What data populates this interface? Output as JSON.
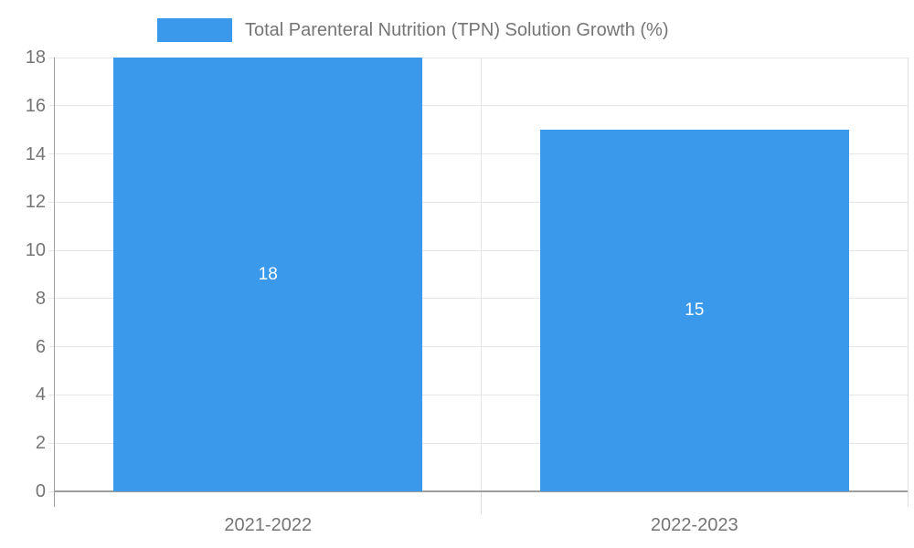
{
  "chart_data": {
    "type": "bar",
    "title": "",
    "legend_label": "Total Parenteral Nutrition (TPN) Solution Growth (%)",
    "legend_position": "top",
    "categories": [
      "2021-2022",
      "2022-2023"
    ],
    "values": [
      18,
      15
    ],
    "bar_labels": [
      "18",
      "15"
    ],
    "ylim": [
      0,
      18
    ],
    "ytick_step": 2,
    "ytick_labels": [
      "0",
      "2",
      "4",
      "6",
      "8",
      "10",
      "12",
      "14",
      "16",
      "18"
    ],
    "grid": true,
    "colors": {
      "bar": "#3B99EC",
      "tick_text": "#757575",
      "legend_text": "#757575",
      "bar_label_text": "#ffffff",
      "gridline": "#e6e6e6",
      "axis_line": "#a0a0a0",
      "bottom_axis_line": "#9e9e9e",
      "plot_border": "#e0e0e0",
      "background": "#ffffff"
    }
  }
}
